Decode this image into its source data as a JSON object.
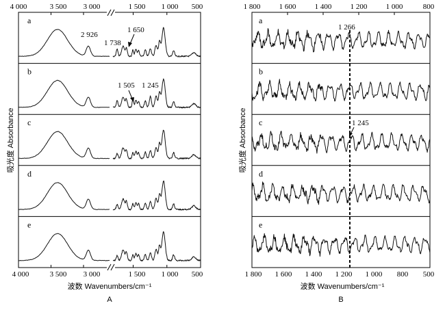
{
  "chart_data": [
    {
      "type": "line",
      "panel_label": "A",
      "xlabel": "波数 Wavenumbers/cm⁻¹",
      "ylabel": "吸光度 Absorbance",
      "x_ticks_left": [
        "4 000",
        "3 500",
        "3 000"
      ],
      "x_ticks_right": [
        "1 500",
        "1 000",
        "500"
      ],
      "xlim_left": [
        4000,
        2600
      ],
      "xlim_right": [
        1800,
        500
      ],
      "axis_break_mark": "//",
      "series": [
        {
          "name": "a",
          "annotations": [
            "2 926",
            "1 738",
            "1 650"
          ]
        },
        {
          "name": "b",
          "annotations": [
            "1 505",
            "1 245"
          ]
        },
        {
          "name": "c",
          "annotations": []
        },
        {
          "name": "d",
          "annotations": []
        },
        {
          "name": "e",
          "annotations": []
        }
      ],
      "peak_features": [
        {
          "x": 3400,
          "height": 0.85,
          "width": 220
        },
        {
          "x": 2926,
          "height": 0.32,
          "width": 45
        },
        {
          "x": 1738,
          "height": 0.22,
          "width": 18
        },
        {
          "x": 1650,
          "height": 0.33,
          "width": 30
        },
        {
          "x": 1600,
          "height": 0.25,
          "width": 20
        },
        {
          "x": 1505,
          "height": 0.2,
          "width": 15
        },
        {
          "x": 1460,
          "height": 0.22,
          "width": 20
        },
        {
          "x": 1420,
          "height": 0.18,
          "width": 18
        },
        {
          "x": 1320,
          "height": 0.2,
          "width": 20
        },
        {
          "x": 1245,
          "height": 0.25,
          "width": 22
        },
        {
          "x": 1160,
          "height": 0.35,
          "width": 25
        },
        {
          "x": 1110,
          "height": 0.45,
          "width": 20
        },
        {
          "x": 1050,
          "height": 0.9,
          "width": 35
        },
        {
          "x": 900,
          "height": 0.18,
          "width": 20
        },
        {
          "x": 600,
          "height": 0.12,
          "width": 40
        }
      ]
    },
    {
      "type": "line",
      "panel_label": "B",
      "xlabel": "波数 Wavenumbers/cm⁻¹",
      "ylabel": "吸光度 Absorbance",
      "x_ticks": [
        "1 800",
        "1 600",
        "1 400",
        "1 200",
        "1 000",
        "800"
      ],
      "x_ticks_bottom": [
        "1 800",
        "1 600",
        "1 400",
        "1 200",
        "1 000",
        "800",
        "500"
      ],
      "xlim": [
        1800,
        800
      ],
      "series": [
        {
          "name": "a",
          "annotations": [
            "1 266"
          ]
        },
        {
          "name": "b",
          "annotations": []
        },
        {
          "name": "c",
          "annotations": [
            "1 245"
          ]
        },
        {
          "name": "d",
          "annotations": []
        },
        {
          "name": "e",
          "annotations": []
        }
      ],
      "reference_line_x": 1245
    }
  ]
}
